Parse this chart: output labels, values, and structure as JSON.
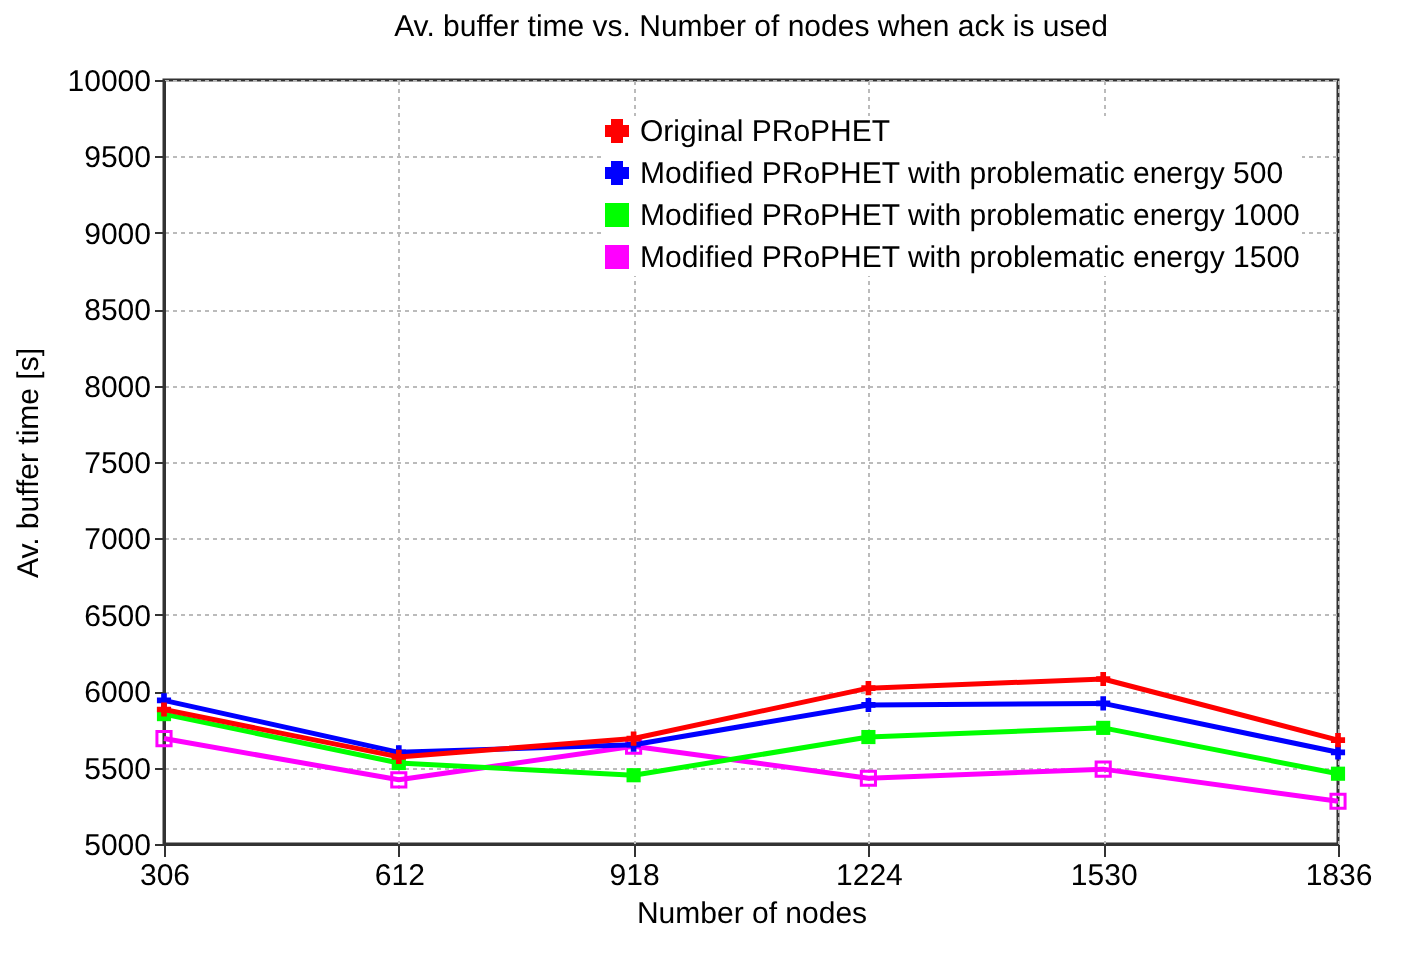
{
  "chart_data": {
    "type": "line",
    "title": "Av. buffer time vs. Number of nodes when ack is used",
    "xlabel": "Number of nodes",
    "ylabel": "Av. buffer time [s]",
    "x": [
      306,
      612,
      918,
      1224,
      1530,
      1836
    ],
    "xlim": [
      306,
      1836
    ],
    "xticks": [
      306,
      612,
      918,
      1224,
      1530,
      1836
    ],
    "ylim": [
      5000,
      10000
    ],
    "yticks": [
      5000,
      5500,
      6000,
      6500,
      7000,
      7500,
      8000,
      8500,
      9000,
      9500,
      10000
    ],
    "grid": true,
    "legend": "top right",
    "series": [
      {
        "name": "Original PRoPHET",
        "color": "#ff0000",
        "marker": "cross",
        "values": [
          5880,
          5570,
          5690,
          6020,
          6080,
          5680
        ]
      },
      {
        "name": "Modified PRoPHET with problematic energy 500",
        "color": "#0000ff",
        "marker": "cross",
        "values": [
          5940,
          5600,
          5650,
          5910,
          5920,
          5600
        ]
      },
      {
        "name": "Modified PRoPHET with problematic energy 1000",
        "color": "#00ff00",
        "marker": "square",
        "values": [
          5850,
          5530,
          5450,
          5700,
          5760,
          5460
        ]
      },
      {
        "name": "Modified PRoPHET with problematic energy 1500",
        "color": "#ff00ff",
        "marker": "square",
        "values": [
          5690,
          5420,
          5640,
          5430,
          5490,
          5280
        ]
      }
    ]
  }
}
